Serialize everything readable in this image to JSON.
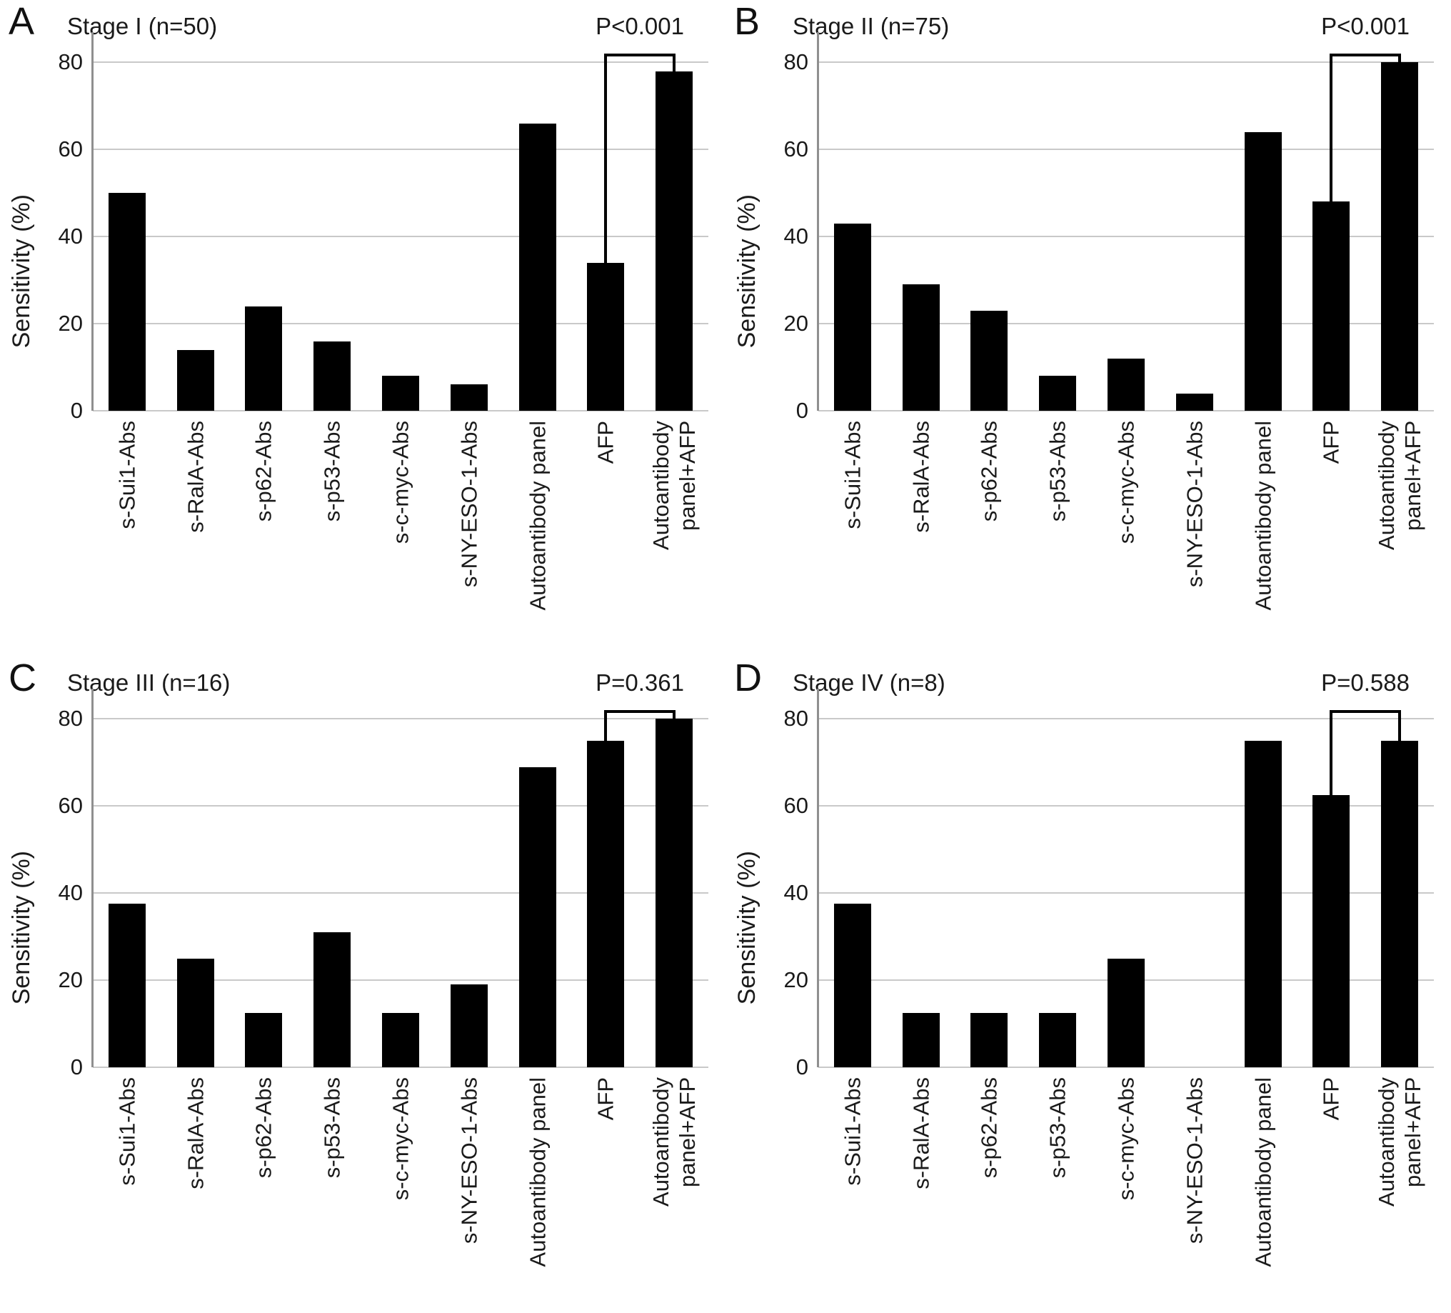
{
  "figure": {
    "background": "#ffffff",
    "text_color": "#1a1a1a",
    "bar_color": "#000000",
    "gridline_color": "#c9c9c9",
    "axis_line_color": "#8f8f8f",
    "bracket_color": "#000000",
    "y_axis_title": "Sensitivity (%)",
    "y_ticks": [
      0,
      20,
      40,
      60,
      80
    ],
    "y_max": 85,
    "bracket_top_value": 82,
    "x_categories": [
      "s-Sui1-Abs",
      "s-RalA-Abs",
      "s-p62-Abs",
      "s-p53-Abs",
      "s-c-myc-Abs",
      "s-NY-ESO-1-Abs",
      "Autoantibody panel",
      "AFP",
      "Autoantibody panel+AFP"
    ],
    "x_tick_labels_display": [
      "s-Sui1-Abs",
      "s-RalA-Abs",
      "s-p62-Abs",
      "s-p53-Abs",
      "s-c-myc-Abs",
      "s-NY-ESO-1-Abs",
      "Autoantibody panel",
      "AFP",
      "Autoantibody\npanel+AFP"
    ]
  },
  "chart_data": [
    {
      "type": "bar",
      "panel_letter": "A",
      "title": "Stage I (n=50)",
      "p_value_label": "P<0.001",
      "comparison": [
        "AFP",
        "Autoantibody panel+AFP"
      ],
      "categories": [
        "s-Sui1-Abs",
        "s-RalA-Abs",
        "s-p62-Abs",
        "s-p53-Abs",
        "s-c-myc-Abs",
        "s-NY-ESO-1-Abs",
        "Autoantibody panel",
        "AFP",
        "Autoantibody panel+AFP"
      ],
      "values": [
        50,
        14,
        24,
        16,
        8,
        6,
        66,
        34,
        78
      ],
      "ylabel": "Sensitivity (%)",
      "ylim": [
        0,
        85
      ],
      "yticks": [
        0,
        20,
        40,
        60,
        80
      ],
      "grid": true
    },
    {
      "type": "bar",
      "panel_letter": "B",
      "title": "Stage II (n=75)",
      "p_value_label": "P<0.001",
      "comparison": [
        "AFP",
        "Autoantibody panel+AFP"
      ],
      "categories": [
        "s-Sui1-Abs",
        "s-RalA-Abs",
        "s-p62-Abs",
        "s-p53-Abs",
        "s-c-myc-Abs",
        "s-NY-ESO-1-Abs",
        "Autoantibody panel",
        "AFP",
        "Autoantibody panel+AFP"
      ],
      "values": [
        43,
        29,
        23,
        8,
        12,
        4,
        64,
        48,
        80
      ],
      "ylabel": "Sensitivity (%)",
      "ylim": [
        0,
        85
      ],
      "yticks": [
        0,
        20,
        40,
        60,
        80
      ],
      "grid": true
    },
    {
      "type": "bar",
      "panel_letter": "C",
      "title": "Stage III (n=16)",
      "p_value_label": "P=0.361",
      "comparison": [
        "AFP",
        "Autoantibody panel+AFP"
      ],
      "categories": [
        "s-Sui1-Abs",
        "s-RalA-Abs",
        "s-p62-Abs",
        "s-p53-Abs",
        "s-c-myc-Abs",
        "s-NY-ESO-1-Abs",
        "Autoantibody panel",
        "AFP",
        "Autoantibody panel+AFP"
      ],
      "values": [
        37.5,
        25,
        12.5,
        31,
        12.5,
        19,
        69,
        75,
        80
      ],
      "ylabel": "Sensitivity (%)",
      "ylim": [
        0,
        85
      ],
      "yticks": [
        0,
        20,
        40,
        60,
        80
      ],
      "grid": true
    },
    {
      "type": "bar",
      "panel_letter": "D",
      "title": "Stage IV (n=8)",
      "p_value_label": "P=0.588",
      "comparison": [
        "AFP",
        "Autoantibody panel+AFP"
      ],
      "categories": [
        "s-Sui1-Abs",
        "s-RalA-Abs",
        "s-p62-Abs",
        "s-p53-Abs",
        "s-c-myc-Abs",
        "s-NY-ESO-1-Abs",
        "Autoantibody panel",
        "AFP",
        "Autoantibody panel+AFP"
      ],
      "values": [
        37.5,
        12.5,
        12.5,
        12.5,
        25,
        0,
        75,
        62.5,
        75
      ],
      "ylabel": "Sensitivity (%)",
      "ylim": [
        0,
        85
      ],
      "yticks": [
        0,
        20,
        40,
        60,
        80
      ],
      "grid": true
    }
  ]
}
